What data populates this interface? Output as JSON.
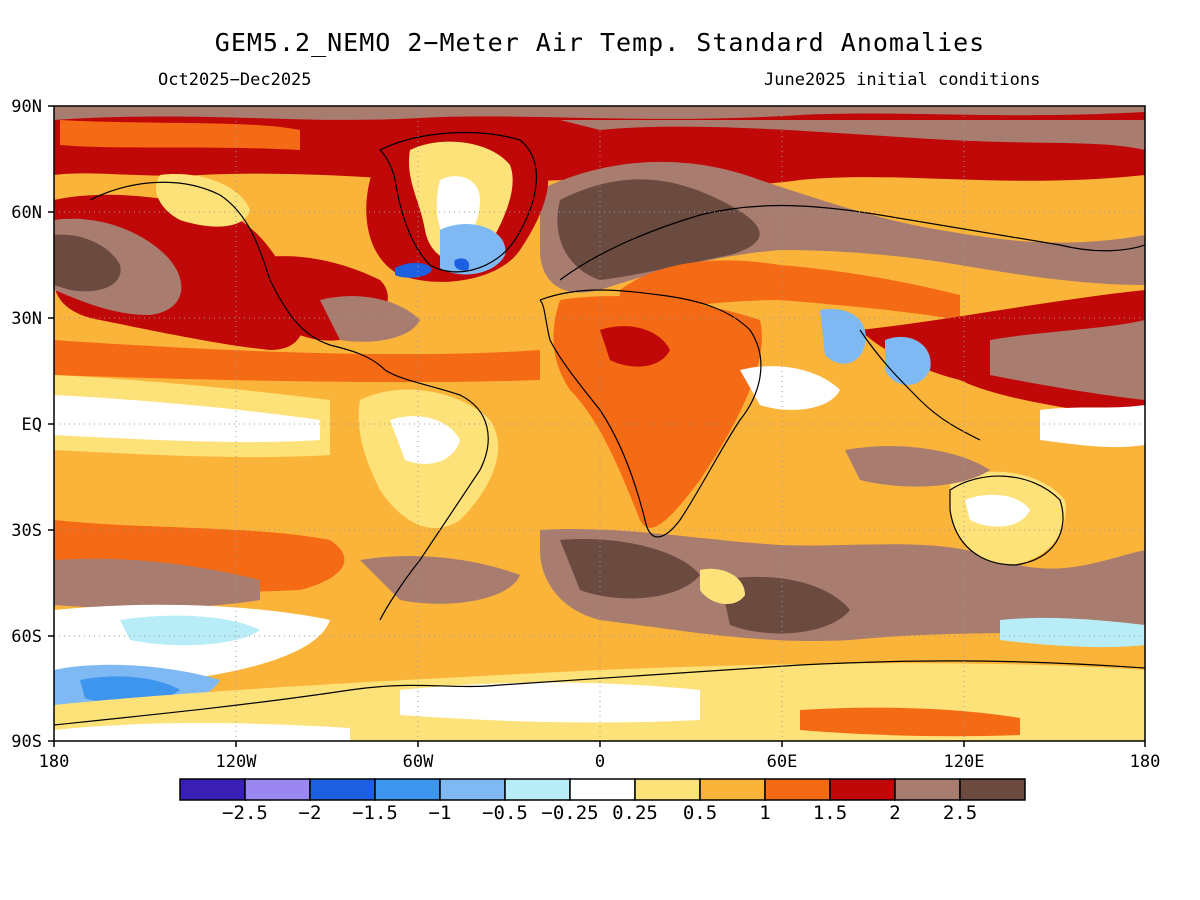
{
  "title": "GEM5.2_NEMO 2−Meter Air Temp. Standard Anomalies",
  "subtitle_left": "Oct2025−Dec2025",
  "subtitle_right": "June2025 initial conditions",
  "lat_labels": [
    "90N",
    "60N",
    "30N",
    "EQ",
    "30S",
    "60S",
    "90S"
  ],
  "lon_labels": [
    "180",
    "120W",
    "60W",
    "0",
    "60E",
    "120E",
    "180"
  ],
  "colorbar": {
    "colors": [
      "#3a1fb5",
      "#9a88f0",
      "#1c5fe0",
      "#3d95ee",
      "#7fb9f3",
      "#b8ecf7",
      "#ffffff",
      "#fde27a",
      "#fbb43a",
      "#f56a14",
      "#c00808",
      "#a97c70",
      "#6b4a40"
    ],
    "labels": [
      "−2.5",
      "−2",
      "−1.5",
      "−1",
      "−0.5",
      "−0.25",
      "0.25",
      "0.5",
      "1",
      "1.5",
      "2",
      "2.5"
    ]
  }
}
